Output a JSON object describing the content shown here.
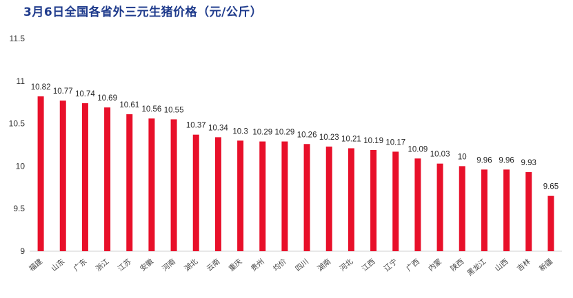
{
  "chart_data": {
    "type": "bar",
    "title": "3月6日全国各省外三元生猪价格（元/公斤）",
    "categories": [
      "福建",
      "山东",
      "广东",
      "浙江",
      "江苏",
      "安徽",
      "河南",
      "湖北",
      "云南",
      "重庆",
      "贵州",
      "均价",
      "四川",
      "湖南",
      "河北",
      "江西",
      "辽宁",
      "广西",
      "内蒙",
      "陕西",
      "黑龙江",
      "山西",
      "吉林",
      "新疆"
    ],
    "values": [
      10.82,
      10.77,
      10.74,
      10.69,
      10.61,
      10.56,
      10.55,
      10.37,
      10.34,
      10.3,
      10.29,
      10.29,
      10.26,
      10.23,
      10.21,
      10.19,
      10.17,
      10.09,
      10.03,
      10,
      9.96,
      9.96,
      9.93,
      9.65
    ],
    "value_labels": [
      "10.82",
      "10.77",
      "10.74",
      "10.69",
      "10.61",
      "10.56",
      "10.55",
      "10.37",
      "10.34",
      "10.3",
      "10.29",
      "10.29",
      "10.26",
      "10.23",
      "10.21",
      "10.19",
      "10.17",
      "10.09",
      "10.03",
      "10",
      "9.96",
      "9.96",
      "9.93",
      "9.65"
    ],
    "ylim": [
      9,
      11.5
    ],
    "yticks": [
      "9",
      "9.5",
      "10",
      "10.5",
      "11",
      "11.5"
    ],
    "grid": false,
    "bar_color": "#e8102a"
  }
}
